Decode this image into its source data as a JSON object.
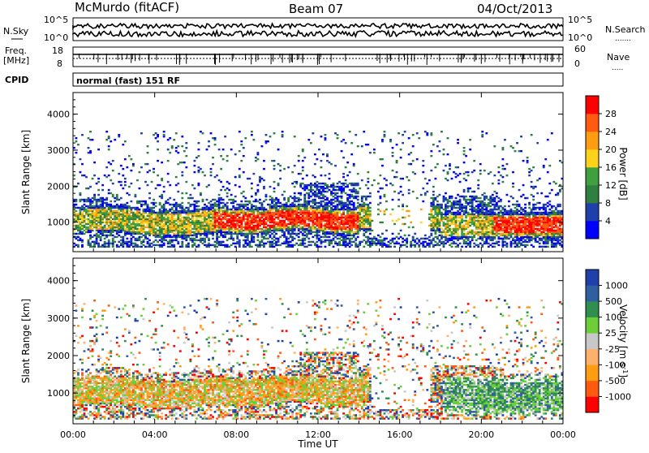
{
  "header": {
    "station": "McMurdo (fitACF)",
    "beam": "Beam 07",
    "date": "04/Oct/2013"
  },
  "strips": {
    "nsky_label": "N.Sky",
    "nsky_top": "10^5",
    "nsky_bottom": "10^0",
    "nsearch_label": "N.Search",
    "nsearch_top": "10^5",
    "nsearch_bottom": "10^0",
    "freq_label_1": "Freq.",
    "freq_label_2": "[MHz]",
    "freq_top": "18",
    "freq_bottom": "8",
    "nave_label": "Nave",
    "nave_top": "60",
    "nave_bottom": "0",
    "cpid_label": "CPID",
    "cpid_text": "normal (fast) 151 RF"
  },
  "colors": {
    "power_scale": [
      "#0000ff",
      "#1f3faa",
      "#2f7f3f",
      "#3fa03f",
      "#ffd21a",
      "#ff9d10",
      "#ff5a10",
      "#ff0000"
    ],
    "velocity_scale": [
      "#ff0000",
      "#ff5a10",
      "#ff9d10",
      "#ffb06a",
      "#c8c8c8",
      "#6ccf3a",
      "#2f8f4f",
      "#2f5fa0",
      "#1f3faa"
    ]
  },
  "chart_data": [
    {
      "type": "heatmap",
      "title": "Power",
      "ylabel": "Slant Range [km]",
      "yticks": [
        "1000",
        "2000",
        "3000",
        "4000"
      ],
      "ylim": [
        180,
        4600
      ],
      "xlim": [
        0,
        24
      ],
      "colorbar_label": "Power [dB]",
      "colorbar_ticks": [
        "4",
        "8",
        "12",
        "16",
        "20",
        "24",
        "28"
      ],
      "colorbar_range": [
        0,
        32
      ]
    },
    {
      "type": "heatmap",
      "title": "Velocity",
      "ylabel": "Slant Range [km]",
      "yticks": [
        "1000",
        "2000",
        "3000",
        "4000"
      ],
      "ylim": [
        180,
        4600
      ],
      "xlim": [
        0,
        24
      ],
      "xticks": [
        "00:00",
        "04:00",
        "08:00",
        "12:00",
        "16:00",
        "20:00",
        "00:00"
      ],
      "xlabel": "Time UT",
      "colorbar_label": "Velocity [m s^-1]",
      "colorbar_ticks": [
        "-1000",
        "-500",
        "-100",
        "-25",
        "25",
        "100",
        "500",
        "1000"
      ]
    }
  ]
}
